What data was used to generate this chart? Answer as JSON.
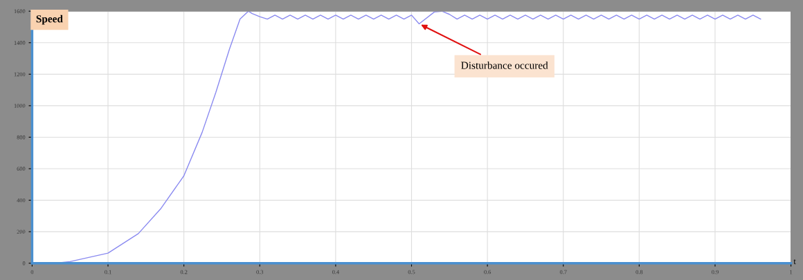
{
  "chart_data": {
    "type": "line",
    "title": "Speed",
    "xlabel": "t",
    "xlim": [
      0,
      1
    ],
    "xticks": [
      0,
      0.1,
      0.2,
      0.3,
      0.4,
      0.5,
      0.6,
      0.7,
      0.8,
      0.9,
      1
    ],
    "ylim": [
      0,
      1600
    ],
    "yticks": [
      0,
      200,
      400,
      600,
      800,
      1000,
      1200,
      1400,
      1600
    ],
    "grid": true,
    "legend": false,
    "series": [
      {
        "color": "#8a8af0",
        "x": [
          0,
          0.03,
          0.05,
          0.1,
          0.14,
          0.17,
          0.2,
          0.224,
          0.242,
          0.26,
          0.274,
          0.285,
          0.29,
          0.3,
          0.31,
          0.32,
          0.33,
          0.34,
          0.35,
          0.36,
          0.37,
          0.38,
          0.39,
          0.4,
          0.41,
          0.42,
          0.43,
          0.44,
          0.45,
          0.46,
          0.47,
          0.48,
          0.49,
          0.5,
          0.51,
          0.53,
          0.54,
          0.55,
          0.56,
          0.57,
          0.58,
          0.59,
          0.6,
          0.61,
          0.62,
          0.63,
          0.64,
          0.65,
          0.66,
          0.67,
          0.68,
          0.69,
          0.7,
          0.71,
          0.72,
          0.73,
          0.74,
          0.75,
          0.76,
          0.77,
          0.78,
          0.79,
          0.8,
          0.81,
          0.82,
          0.83,
          0.84,
          0.85,
          0.86,
          0.87,
          0.88,
          0.89,
          0.9,
          0.91,
          0.92,
          0.93,
          0.94,
          0.95,
          0.96
        ],
        "values": [
          0,
          0,
          10,
          64,
          188,
          349,
          555,
          830,
          1083,
          1358,
          1550,
          1600,
          1585,
          1565,
          1550,
          1575,
          1550,
          1575,
          1550,
          1575,
          1550,
          1575,
          1550,
          1575,
          1550,
          1575,
          1550,
          1575,
          1550,
          1575,
          1550,
          1575,
          1550,
          1575,
          1520,
          1595,
          1600,
          1580,
          1550,
          1575,
          1550,
          1575,
          1550,
          1575,
          1550,
          1575,
          1550,
          1575,
          1550,
          1575,
          1550,
          1575,
          1550,
          1575,
          1550,
          1575,
          1550,
          1575,
          1550,
          1575,
          1550,
          1575,
          1550,
          1575,
          1550,
          1575,
          1550,
          1575,
          1550,
          1575,
          1550,
          1575,
          1550,
          1575,
          1550,
          1575,
          1550,
          1575,
          1550
        ]
      }
    ],
    "annotations": [
      {
        "text": "Disturbance occured",
        "x": 0.51,
        "y": 1520
      }
    ]
  }
}
